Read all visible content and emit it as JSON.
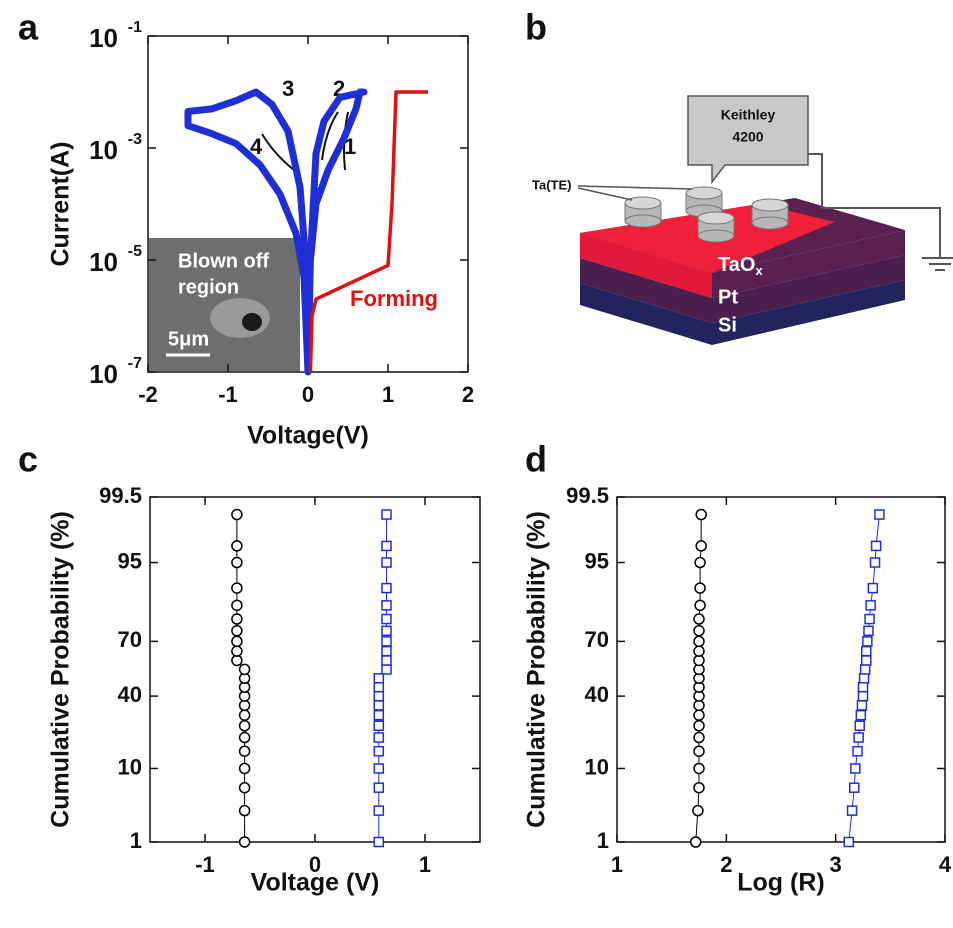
{
  "chart_data": [
    {
      "type": "line",
      "panel": "a",
      "xlabel": "Voltage(V)",
      "ylabel": "Current(A)",
      "xlim": [
        -2,
        2
      ],
      "xticks": [
        -2,
        -1,
        0,
        1,
        2
      ],
      "yscale": "log",
      "ylim": [
        1e-07,
        0.1
      ],
      "yticks": [
        {
          "value": 1e-07,
          "label": "10",
          "sup": "-7"
        },
        {
          "value": 1e-05,
          "label": "10",
          "sup": "-5"
        },
        {
          "value": 0.001,
          "label": "10",
          "sup": "-3"
        },
        {
          "value": 0.1,
          "label": "10",
          "sup": "-1"
        }
      ],
      "series": [
        {
          "color": "#1f2fd6",
          "x": [
            0,
            0.03,
            0.1,
            0.25,
            0.45,
            0.6,
            0.65,
            0.7,
            0.4,
            0.2,
            0.1,
            0.03,
            0,
            -0.03,
            -0.1,
            -0.25,
            -0.45,
            -0.65,
            -0.9,
            -1.2,
            -1.5,
            -1.5,
            -1.2,
            -0.9,
            -0.6,
            -0.35,
            -0.15,
            -0.05,
            0
          ],
          "values": [
            1e-07,
            1e-05,
            0.0001,
            0.0004,
            0.0015,
            0.005,
            0.01,
            0.01,
            0.008,
            0.003,
            0.0008,
            1e-05,
            1e-07,
            1e-05,
            0.0002,
            0.002,
            0.006,
            0.01,
            0.007,
            0.005,
            0.0045,
            0.0025,
            0.0018,
            0.0012,
            0.0005,
            0.00015,
            3e-05,
            5e-06,
            1e-07
          ]
        },
        {
          "color": "#e01010",
          "x": [
            0.03,
            0.05,
            0.1,
            1.0,
            1.05,
            1.1,
            1.5
          ],
          "values": [
            1e-07,
            1e-06,
            2e-06,
            8e-06,
            0.0001,
            0.01,
            0.01
          ]
        }
      ],
      "annotations": [
        "1",
        "2",
        "3",
        "4",
        "Forming"
      ],
      "inset": {
        "lines": [
          "Blown off",
          "region"
        ],
        "scale": "5μm"
      }
    },
    {
      "type": "scatter",
      "panel": "c",
      "xlabel": "Voltage (V)",
      "ylabel": "Cumulative Probability (%)",
      "xlim": [
        -1.5,
        1.5
      ],
      "xticks": [
        -1,
        0,
        1
      ],
      "yscale": "probability",
      "ylim": [
        1,
        99.5
      ],
      "yticks": [
        1,
        10,
        40,
        70,
        95,
        99.5
      ],
      "series": [
        {
          "color": "#000000",
          "marker": "circle",
          "x": [
            -0.64,
            -0.64,
            -0.64,
            -0.64,
            -0.64,
            -0.64,
            -0.64,
            -0.64,
            -0.64,
            -0.64,
            -0.64,
            -0.64,
            -0.64,
            -0.71,
            -0.71,
            -0.71,
            -0.71,
            -0.71,
            -0.71,
            -0.71,
            -0.71,
            -0.71,
            -0.71
          ],
          "values": [
            1,
            3,
            6,
            10,
            15,
            20,
            25,
            30,
            35,
            40,
            45,
            50,
            55,
            60,
            65,
            70,
            75,
            80,
            85,
            90,
            95,
            97,
            99
          ]
        },
        {
          "color": "#1f2fd6",
          "marker": "square",
          "x": [
            0.58,
            0.58,
            0.58,
            0.58,
            0.58,
            0.58,
            0.58,
            0.58,
            0.58,
            0.58,
            0.58,
            0.58,
            0.65,
            0.65,
            0.65,
            0.65,
            0.65,
            0.65,
            0.65,
            0.65,
            0.65,
            0.65,
            0.65
          ],
          "values": [
            1,
            3,
            6,
            10,
            15,
            20,
            25,
            30,
            35,
            40,
            45,
            50,
            55,
            60,
            65,
            70,
            75,
            80,
            85,
            90,
            95,
            97,
            99
          ]
        }
      ]
    },
    {
      "type": "scatter",
      "panel": "d",
      "xlabel": "Log (R)",
      "ylabel": "Cumulative Probability (%)",
      "xlim": [
        1,
        4
      ],
      "xticks": [
        1,
        2,
        3,
        4
      ],
      "yscale": "probability",
      "ylim": [
        1,
        99.5
      ],
      "yticks": [
        1,
        10,
        40,
        70,
        95,
        99.5
      ],
      "series": [
        {
          "color": "#000000",
          "marker": "circle",
          "x": [
            1.72,
            1.74,
            1.75,
            1.75,
            1.75,
            1.75,
            1.75,
            1.75,
            1.75,
            1.75,
            1.75,
            1.75,
            1.75,
            1.75,
            1.75,
            1.75,
            1.75,
            1.75,
            1.76,
            1.76,
            1.76,
            1.77,
            1.77
          ],
          "values": [
            1,
            3,
            6,
            10,
            15,
            20,
            25,
            30,
            35,
            40,
            45,
            50,
            55,
            60,
            65,
            70,
            75,
            80,
            85,
            90,
            95,
            97,
            99
          ]
        },
        {
          "color": "#1f2fd6",
          "marker": "square",
          "x": [
            3.12,
            3.15,
            3.17,
            3.18,
            3.2,
            3.21,
            3.22,
            3.23,
            3.24,
            3.25,
            3.25,
            3.26,
            3.27,
            3.28,
            3.28,
            3.29,
            3.3,
            3.31,
            3.32,
            3.34,
            3.36,
            3.37,
            3.4
          ],
          "values": [
            1,
            3,
            6,
            10,
            15,
            20,
            25,
            30,
            35,
            40,
            45,
            50,
            55,
            60,
            65,
            70,
            75,
            80,
            85,
            90,
            95,
            97,
            99
          ]
        }
      ]
    }
  ],
  "diagram": {
    "panel": "b",
    "instrument": [
      "Keithley",
      "4200"
    ],
    "electrode": "Ta(TE)",
    "top_layer": {
      "text": "TaO",
      "sub": "x"
    },
    "layers": [
      "Pt",
      "Si"
    ]
  }
}
